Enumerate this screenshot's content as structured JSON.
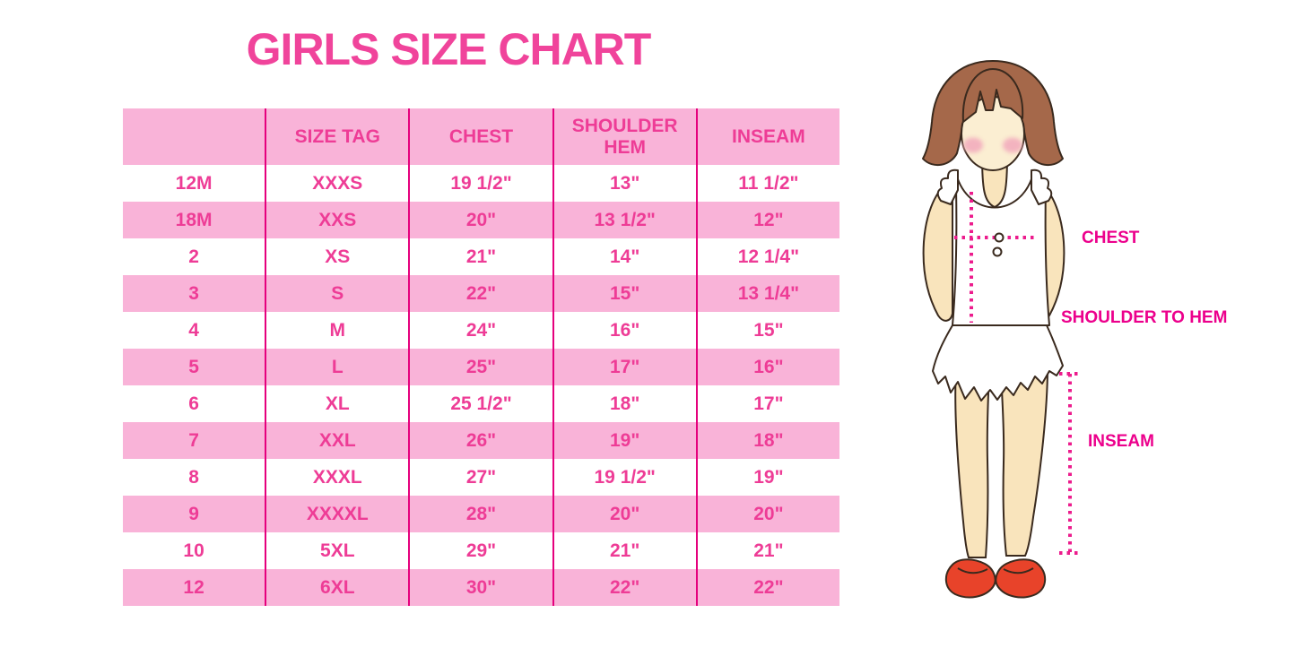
{
  "page_title": "GIRLS SIZE CHART",
  "chart_data": {
    "type": "table",
    "title": "GIRLS SIZE CHART",
    "columns": [
      "",
      "SIZE TAG",
      "CHEST",
      "SHOULDER HEM",
      "INSEAM"
    ],
    "rows": [
      [
        "12M",
        "XXXS",
        "19 1/2\"",
        "13\"",
        "11 1/2\""
      ],
      [
        "18M",
        "XXS",
        "20\"",
        "13 1/2\"",
        "12\""
      ],
      [
        "2",
        "XS",
        "21\"",
        "14\"",
        "12 1/4\""
      ],
      [
        "3",
        "S",
        "22\"",
        "15\"",
        "13 1/4\""
      ],
      [
        "4",
        "M",
        "24\"",
        "16\"",
        "15\""
      ],
      [
        "5",
        "L",
        "25\"",
        "17\"",
        "16\""
      ],
      [
        "6",
        "XL",
        "25 1/2\"",
        "18\"",
        "17\""
      ],
      [
        "7",
        "XXL",
        "26\"",
        "19\"",
        "18\""
      ],
      [
        "8",
        "XXXL",
        "27\"",
        "19 1/2\"",
        "19\""
      ],
      [
        "9",
        "XXXXL",
        "28\"",
        "20\"",
        "20\""
      ],
      [
        "10",
        "5XL",
        "29\"",
        "21\"",
        "21\""
      ],
      [
        "12",
        "6XL",
        "30\"",
        "22\"",
        "22\""
      ]
    ],
    "row_shading": "alternating pink/white, header pink",
    "grid": "vertical column separators only"
  },
  "figure": {
    "labels": {
      "chest": "CHEST",
      "shoulder_to_hem": "SHOULDER TO HEM",
      "inseam": "INSEAM"
    }
  },
  "colors": {
    "title_pink": "#F0449B",
    "row_band_pink": "#F9B3D8",
    "column_line_magenta": "#E5007D",
    "cell_text_pink": "#EE3C96",
    "label_magenta": "#EC008C",
    "dotted_line_pink": "#EC1C8D",
    "hair_brown": "#A5684A",
    "skin_tone": "#F9E4BC",
    "face_tone": "#FBEED2",
    "blush_pink": "#F3B3BF",
    "shoe_red": "#E8432A",
    "outline_dark": "#3A2A1E",
    "garment_white": "#FFFFFF"
  }
}
